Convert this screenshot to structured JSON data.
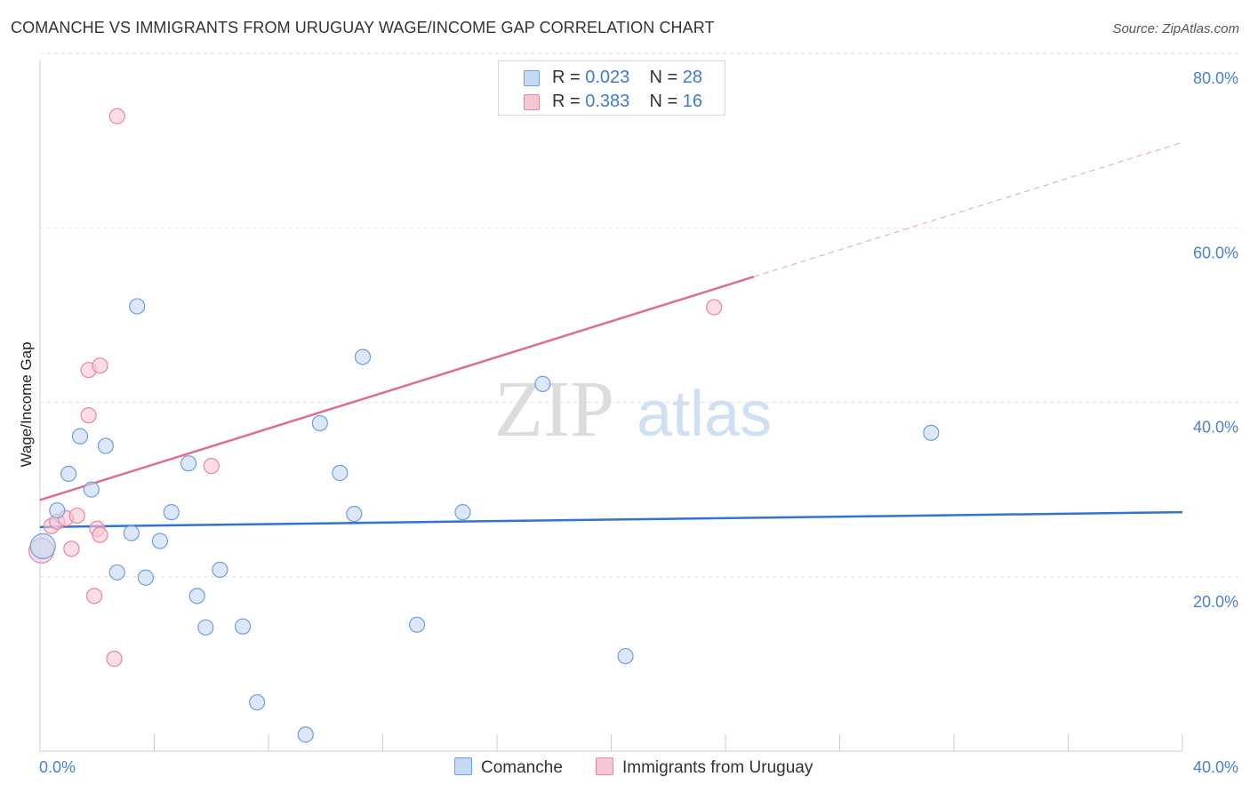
{
  "title": "COMANCHE VS IMMIGRANTS FROM URUGUAY WAGE/INCOME GAP CORRELATION CHART",
  "source": "Source: ZipAtlas.com",
  "watermark": {
    "zip": "ZIP",
    "atlas": "atlas"
  },
  "legend": {
    "r_label": "R =",
    "n_label": "N =",
    "rows": [
      {
        "r": "0.023",
        "n": "28"
      },
      {
        "r": "0.383",
        "n": "16"
      }
    ]
  },
  "chart_data": {
    "type": "scatter",
    "title": "COMANCHE VS IMMIGRANTS FROM URUGUAY WAGE/INCOME GAP CORRELATION CHART",
    "xlabel": "",
    "ylabel": "Wage/Income Gap",
    "xlim": [
      0,
      40
    ],
    "ylim": [
      0,
      80
    ],
    "x_ticks": [
      "0.0%",
      "40.0%"
    ],
    "y_ticks": [
      "20.0%",
      "40.0%",
      "60.0%",
      "80.0%"
    ],
    "grid": true,
    "series": [
      {
        "name": "Comanche",
        "color": "#6f9fe0",
        "fill": "#c5d9f5",
        "r": 0.023,
        "n": 28,
        "points": [
          [
            0.1,
            23.5
          ],
          [
            0.6,
            27.6
          ],
          [
            1.0,
            31.8
          ],
          [
            1.4,
            36.1
          ],
          [
            1.8,
            30.0
          ],
          [
            2.3,
            35.0
          ],
          [
            2.7,
            20.5
          ],
          [
            3.2,
            25.0
          ],
          [
            3.4,
            51.0
          ],
          [
            3.7,
            19.9
          ],
          [
            4.2,
            24.1
          ],
          [
            4.6,
            27.4
          ],
          [
            5.2,
            33.0
          ],
          [
            5.5,
            17.8
          ],
          [
            5.8,
            14.2
          ],
          [
            6.3,
            20.8
          ],
          [
            7.1,
            14.3
          ],
          [
            7.6,
            5.6
          ],
          [
            9.3,
            1.9
          ],
          [
            9.8,
            37.6
          ],
          [
            10.5,
            31.9
          ],
          [
            11.0,
            27.2
          ],
          [
            11.3,
            45.2
          ],
          [
            13.2,
            14.5
          ],
          [
            14.8,
            27.4
          ],
          [
            17.6,
            42.1
          ],
          [
            20.5,
            10.9
          ],
          [
            31.2,
            36.5
          ]
        ],
        "trend": {
          "x": [
            0,
            40
          ],
          "y": [
            25.7,
            27.4
          ],
          "style": "solid"
        }
      },
      {
        "name": "Immigrants from Uruguay",
        "color": "#e887a6",
        "fill": "#f7c6d4",
        "r": 0.383,
        "n": 16,
        "points": [
          [
            0.05,
            23.0
          ],
          [
            0.4,
            25.8
          ],
          [
            0.6,
            26.3
          ],
          [
            0.9,
            26.7
          ],
          [
            1.1,
            23.2
          ],
          [
            1.3,
            27.0
          ],
          [
            1.7,
            43.7
          ],
          [
            1.7,
            38.5
          ],
          [
            1.9,
            17.8
          ],
          [
            2.0,
            25.5
          ],
          [
            2.1,
            24.8
          ],
          [
            2.1,
            44.2
          ],
          [
            2.6,
            10.6
          ],
          [
            2.7,
            72.8
          ],
          [
            6.0,
            32.7
          ],
          [
            23.6,
            50.9
          ]
        ],
        "trend": {
          "x": [
            0,
            25
          ],
          "y": [
            28.8,
            54.4
          ],
          "style": "solid"
        },
        "trend_extension": {
          "x": [
            25,
            40
          ],
          "y": [
            54.4,
            69.8
          ],
          "style": "dashed"
        }
      }
    ]
  },
  "bottom_legend": [
    "Comanche",
    "Immigrants from Uruguay"
  ]
}
